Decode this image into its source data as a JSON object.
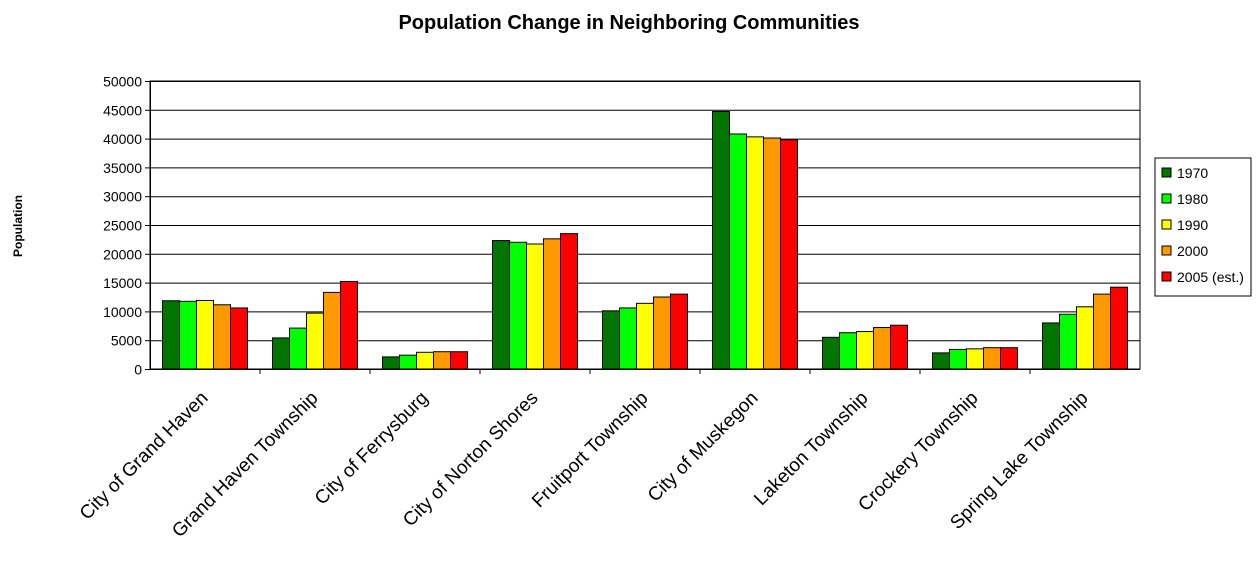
{
  "chart_data": {
    "type": "bar",
    "title": "Population Change in Neighboring Communities",
    "xlabel": "",
    "ylabel": "Population",
    "ylim": [
      0,
      50000
    ],
    "yticks": [
      0,
      5000,
      10000,
      15000,
      20000,
      25000,
      30000,
      35000,
      40000,
      45000,
      50000
    ],
    "grid": true,
    "legend_position": "right",
    "categories": [
      "City of Grand Haven",
      "Grand Haven Township",
      "City of Ferrysburg",
      "City of Norton Shores",
      "Fruitport Township",
      "City of Muskegon",
      "Laketon Township",
      "Crockery Township",
      "Spring Lake Township"
    ],
    "series": [
      {
        "name": "1970",
        "color": "#007500",
        "values": [
          11850,
          5400,
          2100,
          22300,
          10100,
          44700,
          5500,
          2800,
          8000
        ]
      },
      {
        "name": "1980",
        "color": "#00ff00",
        "values": [
          11750,
          7100,
          2400,
          22000,
          10600,
          40800,
          6300,
          3400,
          9500
        ]
      },
      {
        "name": "1990",
        "color": "#ffff00",
        "values": [
          11900,
          9700,
          2900,
          21700,
          11400,
          40300,
          6500,
          3500,
          10800
        ]
      },
      {
        "name": "2000",
        "color": "#ff9900",
        "values": [
          11150,
          13300,
          3000,
          22600,
          12500,
          40100,
          7200,
          3700,
          13000
        ]
      },
      {
        "name": "2005 (est.)",
        "color": "#ff0000",
        "values": [
          10600,
          15200,
          3000,
          23500,
          13000,
          39800,
          7600,
          3700,
          14200
        ]
      }
    ]
  }
}
